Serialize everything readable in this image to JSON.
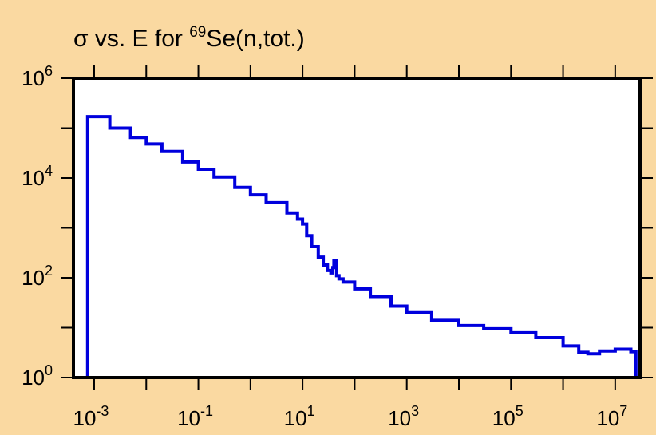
{
  "chart_data": {
    "type": "line",
    "title": {
      "prefix": "σ vs. E for ",
      "sup": "69",
      "suffix": "Se(n,tot.)"
    },
    "xlabel": "",
    "ylabel": "",
    "x_scale": "log",
    "y_scale": "log",
    "xlim": [
      0.0004,
      30000000
    ],
    "ylim": [
      1,
      1000000
    ],
    "x_ticks": [
      {
        "base": "10",
        "exp": "-3",
        "value": 0.001
      },
      {
        "base": "10",
        "exp": "-1",
        "value": 0.1
      },
      {
        "base": "10",
        "exp": "1",
        "value": 10
      },
      {
        "base": "10",
        "exp": "3",
        "value": 1000
      },
      {
        "base": "10",
        "exp": "5",
        "value": 100000
      },
      {
        "base": "10",
        "exp": "7",
        "value": 10000000
      }
    ],
    "y_ticks": [
      {
        "base": "10",
        "exp": "0",
        "value": 1
      },
      {
        "base": "10",
        "exp": "2",
        "value": 100
      },
      {
        "base": "10",
        "exp": "4",
        "value": 10000
      },
      {
        "base": "10",
        "exp": "6",
        "value": 1000000
      }
    ],
    "grid": false,
    "line_color": "#0000dd",
    "plot_background": "#ffffff",
    "page_background": "#fad9a1",
    "series": [
      {
        "x": [
          0.00075,
          0.00075,
          0.002,
          0.005,
          0.01,
          0.02,
          0.05,
          0.1,
          0.2,
          0.5,
          1,
          2,
          5,
          8,
          10,
          12,
          15,
          20,
          25,
          30,
          35,
          38,
          40,
          45,
          50,
          60,
          100,
          200,
          500,
          1000,
          3000,
          10000,
          30000,
          100000,
          300000,
          1000000,
          2000000,
          3000000,
          5000000,
          10000000,
          20000000,
          25000000,
          25000000
        ],
        "y": [
          1,
          170000,
          100000,
          65000,
          48000,
          34000,
          21000,
          15000,
          10500,
          6500,
          4600,
          3200,
          2000,
          1500,
          1200,
          700,
          420,
          260,
          180,
          140,
          125,
          160,
          220,
          110,
          95,
          82,
          60,
          42,
          27,
          20,
          14,
          11,
          9.5,
          7.9,
          6.3,
          4.3,
          3.2,
          3,
          3.4,
          3.7,
          3.3,
          2.8,
          1
        ]
      }
    ]
  }
}
